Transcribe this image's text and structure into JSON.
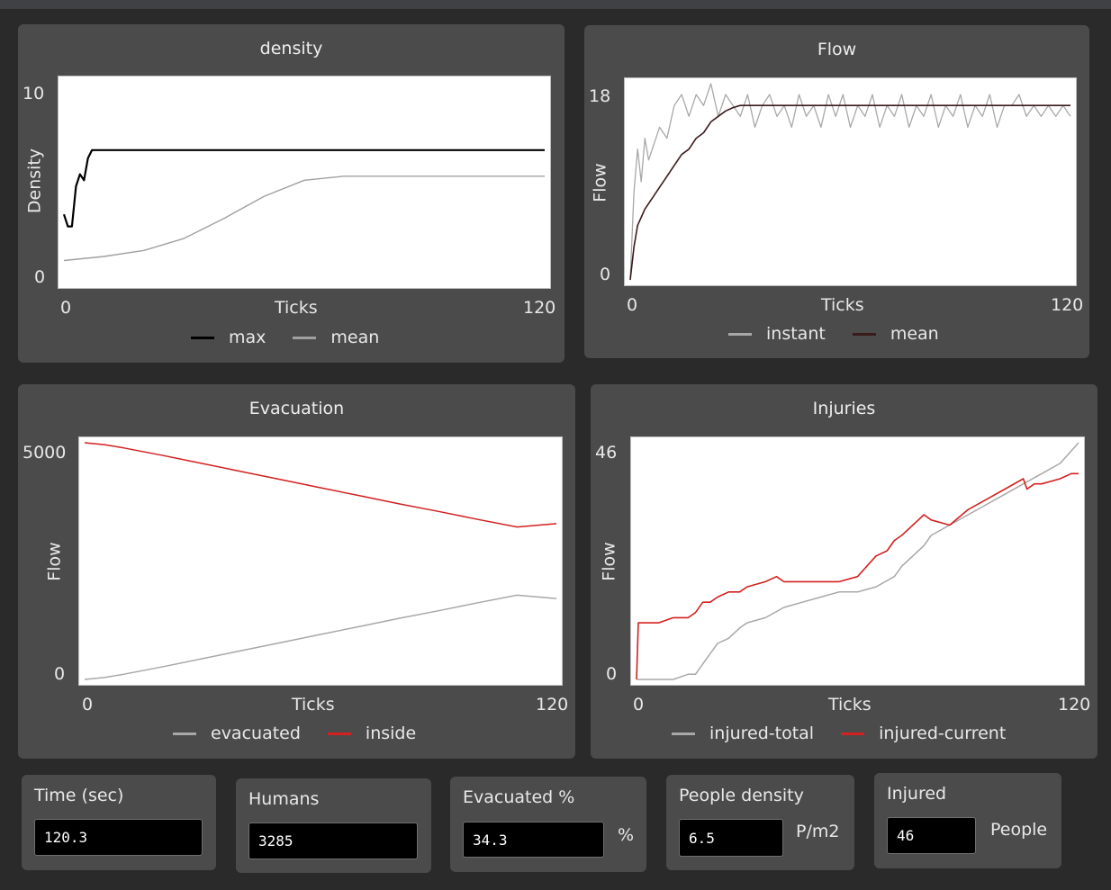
{
  "plots": {
    "density": {
      "title": "density",
      "ylabel": "Density",
      "xlabel": "Ticks",
      "xmin": "0",
      "xmax": "120",
      "ymin": "0",
      "ymax": "10",
      "legend": [
        {
          "name": "max",
          "color": "#000000"
        },
        {
          "name": "mean",
          "color": "#a0a0a0"
        }
      ]
    },
    "flow": {
      "title": "Flow",
      "ylabel": "Flow",
      "xlabel": "Ticks",
      "xmin": "0",
      "xmax": "120",
      "ymin": "0",
      "ymax": "18",
      "legend": [
        {
          "name": "instant",
          "color": "#a8a8a8"
        },
        {
          "name": "mean",
          "color": "#3a1a1a"
        }
      ]
    },
    "evacuation": {
      "title": "Evacuation",
      "ylabel": "Flow",
      "xlabel": "Ticks",
      "xmin": "0",
      "xmax": "120",
      "ymin": "0",
      "ymax": "5000",
      "legend": [
        {
          "name": "evacuated",
          "color": "#a8a8a8"
        },
        {
          "name": "inside",
          "color": "#d32020"
        }
      ]
    },
    "injuries": {
      "title": "Injuries",
      "ylabel": "Flow",
      "xlabel": "Ticks",
      "xmin": "0",
      "xmax": "120",
      "ymin": "0",
      "ymax": "46",
      "legend": [
        {
          "name": "injured-total",
          "color": "#a8a8a8"
        },
        {
          "name": "injured-current",
          "color": "#d32020"
        }
      ]
    }
  },
  "chart_data": [
    {
      "type": "line",
      "title": "density",
      "xlabel": "Ticks",
      "ylabel": "Density",
      "xlim": [
        0,
        120
      ],
      "ylim": [
        0,
        10
      ],
      "series": [
        {
          "name": "max",
          "color": "#000000",
          "x": [
            0,
            1,
            2,
            3,
            4,
            5,
            6,
            7,
            8,
            120
          ],
          "y": [
            3.4,
            2.8,
            2.8,
            4.8,
            5.4,
            5.1,
            6.2,
            6.6,
            6.6,
            6.6
          ]
        },
        {
          "name": "mean",
          "color": "#a0a0a0",
          "x": [
            0,
            10,
            20,
            30,
            40,
            50,
            60,
            70,
            80,
            90,
            100,
            110,
            120
          ],
          "y": [
            1.1,
            1.3,
            1.6,
            2.2,
            3.2,
            4.3,
            5.1,
            5.3,
            5.3,
            5.3,
            5.3,
            5.3,
            5.3
          ]
        }
      ]
    },
    {
      "type": "line",
      "title": "Flow",
      "xlabel": "Ticks",
      "ylabel": "Flow",
      "xlim": [
        0,
        120
      ],
      "ylim": [
        0,
        18
      ],
      "series": [
        {
          "name": "instant",
          "color": "#a8a8a8",
          "x": [
            0,
            1,
            2,
            3,
            4,
            5,
            6,
            8,
            10,
            12,
            14,
            16,
            18,
            20,
            22,
            24,
            26,
            28,
            30,
            32,
            34,
            36,
            38,
            40,
            42,
            44,
            46,
            48,
            50,
            52,
            54,
            56,
            58,
            60,
            62,
            64,
            66,
            68,
            70,
            72,
            74,
            76,
            78,
            80,
            82,
            84,
            86,
            88,
            90,
            92,
            94,
            96,
            98,
            100,
            102,
            104,
            106,
            108,
            110,
            112,
            114,
            116,
            118,
            120
          ],
          "y": [
            0,
            8,
            12,
            9,
            13,
            11,
            12,
            14,
            13,
            16,
            17,
            15,
            17,
            16,
            18,
            15,
            17,
            16,
            15,
            17,
            14,
            16,
            17,
            15,
            16,
            14,
            17,
            15,
            16,
            14,
            17,
            15,
            17,
            14,
            16,
            15,
            17,
            14,
            16,
            15,
            17,
            14,
            16,
            15,
            17,
            14,
            16,
            15,
            17,
            14,
            16,
            15,
            17,
            14,
            16,
            16,
            17,
            15,
            16,
            15,
            16,
            15,
            16,
            15
          ]
        },
        {
          "name": "mean",
          "color": "#3a1a1a",
          "x": [
            0,
            1,
            2,
            4,
            6,
            8,
            10,
            12,
            14,
            16,
            18,
            20,
            22,
            24,
            26,
            28,
            30,
            40,
            60,
            80,
            100,
            120
          ],
          "y": [
            0,
            3,
            5,
            6.5,
            7.5,
            8.5,
            9.5,
            10.5,
            11.5,
            12,
            13,
            13.5,
            14.5,
            15,
            15.5,
            15.8,
            16,
            16,
            16,
            16,
            16,
            16
          ]
        }
      ]
    },
    {
      "type": "line",
      "title": "Evacuation",
      "xlabel": "Ticks",
      "ylabel": "Flow",
      "xlim": [
        0,
        120
      ],
      "ylim": [
        0,
        5000
      ],
      "series": [
        {
          "name": "evacuated",
          "color": "#a8a8a8",
          "x": [
            0,
            5,
            10,
            20,
            30,
            40,
            50,
            60,
            70,
            80,
            90,
            100,
            110,
            120
          ],
          "y": [
            0,
            40,
            110,
            270,
            440,
            610,
            780,
            950,
            1120,
            1290,
            1450,
            1620,
            1780,
            1710
          ]
        },
        {
          "name": "inside",
          "color": "#d32020",
          "x": [
            0,
            5,
            10,
            20,
            30,
            40,
            50,
            60,
            70,
            80,
            90,
            100,
            110,
            120
          ],
          "y": [
            5000,
            4960,
            4890,
            4730,
            4560,
            4390,
            4220,
            4050,
            3880,
            3710,
            3550,
            3380,
            3220,
            3290
          ]
        }
      ]
    },
    {
      "type": "line",
      "title": "Injuries",
      "xlabel": "Ticks",
      "ylabel": "Flow",
      "xlim": [
        0,
        120
      ],
      "ylim": [
        0,
        46
      ],
      "series": [
        {
          "name": "injured-total",
          "color": "#a8a8a8",
          "x": [
            0,
            3,
            6,
            10,
            14,
            16,
            18,
            20,
            22,
            25,
            28,
            30,
            35,
            40,
            45,
            50,
            55,
            60,
            65,
            70,
            72,
            75,
            78,
            80,
            85,
            90,
            95,
            100,
            105,
            110,
            115,
            120
          ],
          "y": [
            0,
            0,
            0,
            0,
            1,
            1,
            3,
            5,
            7,
            8,
            10,
            11,
            12,
            14,
            15,
            16,
            17,
            17,
            18,
            20,
            22,
            24,
            26,
            28,
            30,
            32,
            34,
            36,
            38,
            40,
            42,
            46
          ]
        },
        {
          "name": "injured-current",
          "color": "#d32020",
          "x": [
            0,
            0.5,
            3,
            6,
            10,
            14,
            16,
            18,
            20,
            22,
            25,
            28,
            30,
            35,
            38,
            40,
            45,
            50,
            55,
            60,
            65,
            68,
            70,
            72,
            75,
            78,
            80,
            85,
            90,
            95,
            100,
            105,
            106,
            108,
            110,
            115,
            118,
            120
          ],
          "y": [
            0,
            11,
            11,
            11,
            12,
            12,
            13,
            15,
            15,
            16,
            17,
            17,
            18,
            19,
            20,
            19,
            19,
            19,
            19,
            20,
            24,
            25,
            27,
            28,
            30,
            32,
            31,
            30,
            33,
            35,
            37,
            39,
            37,
            38,
            38,
            39,
            40,
            40
          ]
        }
      ]
    }
  ],
  "monitors": [
    {
      "label": "Time (sec)",
      "value": "120.3",
      "unit": ""
    },
    {
      "label": "Humans",
      "value": "3285",
      "unit": ""
    },
    {
      "label": "Evacuated %",
      "value": "34.3",
      "unit": "%"
    },
    {
      "label": "People density",
      "value": "6.5",
      "unit": "P/m2"
    },
    {
      "label": "Injured",
      "value": "46",
      "unit": "People"
    }
  ]
}
